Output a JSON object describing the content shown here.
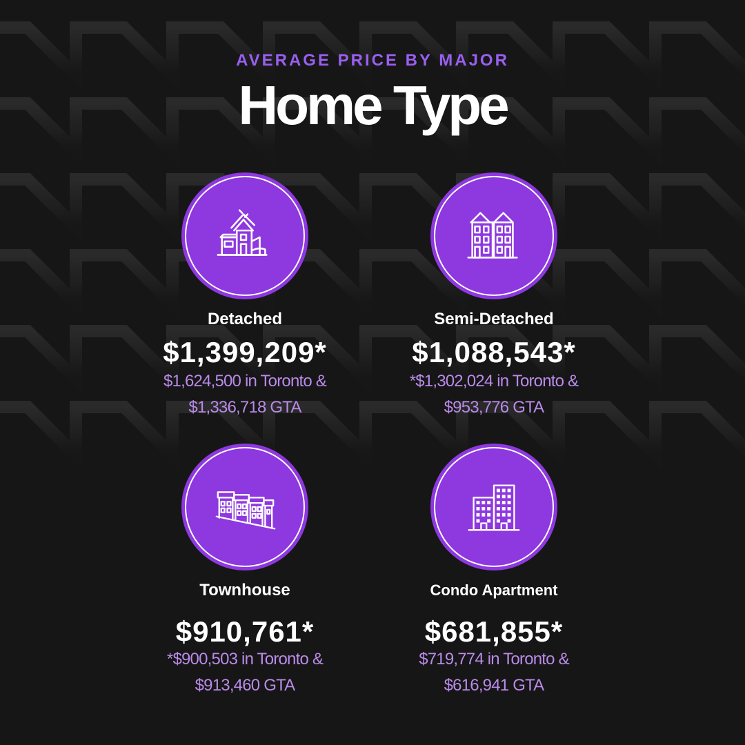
{
  "header": {
    "kicker": "AVERAGE PRICE BY MAJOR",
    "title": "Home Type"
  },
  "colors": {
    "background": "#161616",
    "accent": "#8e38e0",
    "kicker": "#9a5ff0",
    "subtext": "#b98ae8",
    "text": "#ffffff"
  },
  "cards": [
    {
      "icon": "detached-house-icon",
      "label": "Detached",
      "price": "$1,399,209*",
      "line1": "$1,624,500 in Toronto &",
      "line2": "$1,336,718  GTA"
    },
    {
      "icon": "semi-detached-house-icon",
      "label": "Semi-Detached",
      "price": "$1,088,543*",
      "line1": "*$1,302,024  in Toronto &",
      "line2": "$953,776  GTA"
    },
    {
      "icon": "townhouse-icon",
      "label": "Townhouse",
      "price": "$910,761*",
      "line1": "*$900,503 in Toronto &",
      "line2": "$913,460 GTA"
    },
    {
      "icon": "condo-building-icon",
      "label": "Condo Apartment",
      "price": "$681,855*",
      "line1": "$719,774 in Toronto &",
      "line2": "$616,941 GTA"
    }
  ]
}
